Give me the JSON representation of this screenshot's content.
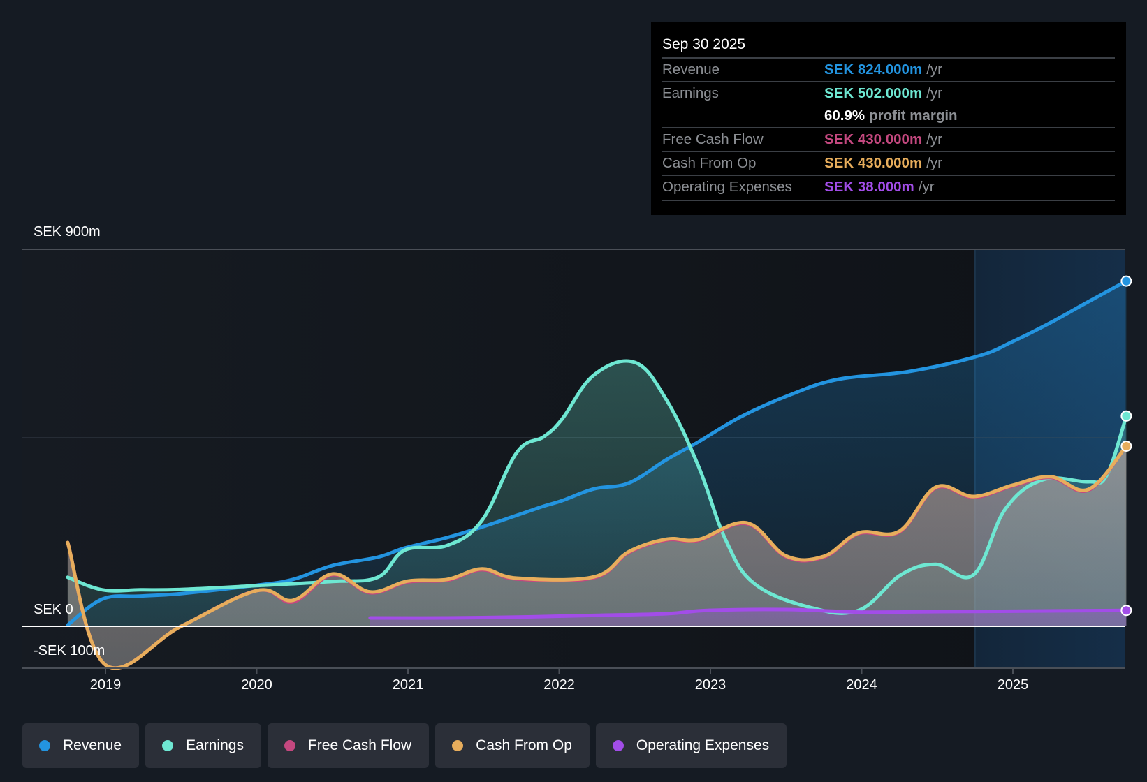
{
  "tooltip": {
    "date": "Sep 30 2025",
    "rows": [
      {
        "label": "Revenue",
        "value": "SEK 824.000m",
        "unit": "/yr",
        "color": "#2394e0"
      },
      {
        "label": "Earnings",
        "value": "SEK 502.000m",
        "unit": "/yr",
        "color": "#6ee7d2"
      },
      {
        "label": "Free Cash Flow",
        "value": "SEK 430.000m",
        "unit": "/yr",
        "color": "#c4487f"
      },
      {
        "label": "Cash From Op",
        "value": "SEK 430.000m",
        "unit": "/yr",
        "color": "#e7ad5c"
      },
      {
        "label": "Operating Expenses",
        "value": "SEK 38.000m",
        "unit": "/yr",
        "color": "#a24de8"
      }
    ],
    "margin_value": "60.9%",
    "margin_label": "profit margin"
  },
  "legend": [
    {
      "label": "Revenue",
      "color": "#2394e0"
    },
    {
      "label": "Earnings",
      "color": "#6ee7d2"
    },
    {
      "label": "Free Cash Flow",
      "color": "#c4487f"
    },
    {
      "label": "Cash From Op",
      "color": "#e7ad5c"
    },
    {
      "label": "Operating Expenses",
      "color": "#a24de8"
    }
  ],
  "chart_data": {
    "type": "area",
    "title": "",
    "xlabel": "",
    "ylabel": "",
    "currency": "SEK",
    "unit": "m",
    "xlim": [
      2018.75,
      2025.75
    ],
    "ylim": [
      -105,
      900
    ],
    "y_tick_labels": [
      {
        "value": 900,
        "label": "SEK 900m"
      },
      {
        "value": 0,
        "label": "SEK 0"
      },
      {
        "value": -100,
        "label": "-SEK 100m"
      }
    ],
    "gridlines": [
      900,
      450
    ],
    "x_ticks": [
      2019,
      2020,
      2021,
      2022,
      2023,
      2024,
      2025
    ],
    "x_tick_labels": [
      "2019",
      "2020",
      "2021",
      "2022",
      "2023",
      "2024",
      "2025"
    ],
    "highlight_from": 2024.75,
    "legend_position": "bottom-left",
    "series": [
      {
        "name": "Revenue",
        "color": "#2394e0",
        "x": [
          2018.75,
          2018.98,
          2019.23,
          2019.5,
          2020.0,
          2020.24,
          2020.5,
          2020.8,
          2020.98,
          2021.26,
          2021.49,
          2021.72,
          2021.9,
          2022.02,
          2022.23,
          2022.46,
          2022.71,
          2022.92,
          2023.2,
          2023.53,
          2023.85,
          2024.31,
          2024.77,
          2025.0,
          2025.25,
          2025.5,
          2025.75
        ],
        "y": [
          3,
          65,
          72,
          78,
          98,
          112,
          145,
          165,
          187,
          212,
          237,
          265,
          287,
          300,
          328,
          342,
          398,
          440,
          500,
          553,
          590,
          608,
          645,
          680,
          725,
          775,
          824
        ]
      },
      {
        "name": "Earnings",
        "color": "#6ee7d2",
        "x": [
          2018.75,
          2018.98,
          2019.23,
          2019.5,
          2020.0,
          2020.5,
          2020.8,
          2020.98,
          2021.26,
          2021.49,
          2021.72,
          2021.9,
          2022.02,
          2022.23,
          2022.5,
          2022.71,
          2022.92,
          2023.1,
          2023.29,
          2023.66,
          2023.98,
          2024.26,
          2024.49,
          2024.74,
          2024.95,
          2025.2,
          2025.5,
          2025.62,
          2025.75
        ],
        "y": [
          117,
          87,
          87,
          88,
          97,
          107,
          117,
          182,
          193,
          253,
          415,
          453,
          495,
          600,
          630,
          540,
          383,
          207,
          102,
          45,
          38,
          123,
          148,
          123,
          280,
          350,
          345,
          360,
          502
        ]
      },
      {
        "name": "Free Cash Flow",
        "color": "#c4487f",
        "x": [
          2018.75,
          2019.0,
          2019.5,
          2020.0,
          2020.24,
          2020.5,
          2020.75,
          2021.0,
          2021.26,
          2021.49,
          2021.72,
          2022.23,
          2022.46,
          2022.71,
          2022.92,
          2023.24,
          2023.5,
          2023.75,
          2023.98,
          2024.25,
          2024.49,
          2024.74,
          2025.0,
          2025.25,
          2025.5,
          2025.75
        ],
        "y": [
          200,
          -92,
          0,
          85,
          58,
          123,
          80,
          106,
          110,
          135,
          113,
          116,
          176,
          206,
          205,
          245,
          166,
          165,
          221,
          225,
          330,
          308,
          335,
          355,
          325,
          430
        ]
      },
      {
        "name": "Cash From Op",
        "color": "#e7ad5c",
        "x": [
          2018.75,
          2019.0,
          2019.5,
          2020.0,
          2020.24,
          2020.5,
          2020.75,
          2021.0,
          2021.26,
          2021.49,
          2021.72,
          2022.23,
          2022.46,
          2022.71,
          2022.92,
          2023.24,
          2023.5,
          2023.75,
          2023.98,
          2024.25,
          2024.49,
          2024.74,
          2025.0,
          2025.25,
          2025.5,
          2025.75
        ],
        "y": [
          200,
          -92,
          0,
          85,
          62,
          125,
          82,
          108,
          112,
          137,
          115,
          118,
          178,
          208,
          207,
          247,
          168,
          167,
          223,
          227,
          332,
          310,
          337,
          357,
          327,
          430
        ]
      },
      {
        "name": "Operating Expenses",
        "color": "#a24de8",
        "x": [
          2020.75,
          2021.26,
          2021.72,
          2022.23,
          2022.71,
          2022.98,
          2023.5,
          2023.98,
          2024.5,
          2025.0,
          2025.75
        ],
        "y": [
          20,
          20,
          22,
          26,
          30,
          38,
          40,
          34,
          35,
          36,
          38
        ]
      }
    ]
  }
}
